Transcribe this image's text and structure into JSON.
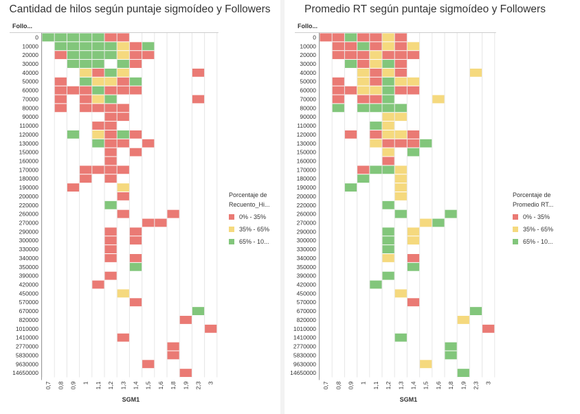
{
  "charts": [
    {
      "title": "Cantidad de hilos según puntaje sigmoídeo y Followers",
      "row_header": "Follo...",
      "legend_title_lines": [
        "Porcentaje de",
        "Recuento_Hi..."
      ]
    },
    {
      "title": "Promedio RT según puntaje sigmoídeo y Followers",
      "row_header": "Follo...",
      "legend_title_lines": [
        "Porcentaje de",
        "Promedio RT..."
      ]
    }
  ],
  "legend_items": [
    {
      "label": "0% - 35%",
      "color": "#ea7a74"
    },
    {
      "label": "35% - 65%",
      "color": "#f5d97e"
    },
    {
      "label": "65% - 10...",
      "color": "#82c67b"
    }
  ],
  "colors": {
    "r": "#ea7a74",
    "y": "#f5d97e",
    "g": "#82c67b",
    "grid": "#e6e6e6",
    "axis": "#999999"
  },
  "chart_data": [
    {
      "type": "heatmap",
      "title": "Cantidad de hilos según puntaje sigmoídeo y Followers",
      "xlabel": "SGM1",
      "ylabel": "Follo...",
      "x": [
        "0,7",
        "0,8",
        "0,9",
        "1",
        "1,1",
        "1,2",
        "1,3",
        "1,4",
        "1,5",
        "1,6",
        "1,8",
        "1,9",
        "2,3",
        "3"
      ],
      "y": [
        "0",
        "10000",
        "20000",
        "30000",
        "40000",
        "50000",
        "60000",
        "70000",
        "80000",
        "90000",
        "110000",
        "120000",
        "130000",
        "150000",
        "160000",
        "170000",
        "180000",
        "190000",
        "200000",
        "220000",
        "260000",
        "270000",
        "290000",
        "300000",
        "330000",
        "340000",
        "350000",
        "390000",
        "420000",
        "450000",
        "570000",
        "670000",
        "820000",
        "1010000",
        "1410000",
        "2770000",
        "5830000",
        "9630000",
        "14650000"
      ],
      "legend": [
        "0% - 35%",
        "35% - 65%",
        "65% - 10..."
      ],
      "rows": [
        "gggggrr.......",
        ".gggggyrg.....",
        ".rggggyrr.....",
        "..ggg.gr......",
        "...yrgy.....r.",
        ".r.gyyrg......",
        ".rrrgrrr......",
        ".r.ryg......r.",
        ".r.rrrr.......",
        ".....rr.......",
        "....rr........",
        "..g.yrgr......",
        "....grr.r.....",
        ".....r.r......",
        ".....r........",
        "...rrrr.......",
        "...r.r........",
        "..r...y.......",
        "......r.......",
        ".....g........",
        "......r...r...",
        "........rr....",
        ".....r.r......",
        ".....r.r......",
        ".....r........",
        ".....r.r......",
        ".......g......",
        ".....r........",
        "....r.........",
        "......y.......",
        ".......r......",
        "............g.",
        "...........r..",
        ".............r",
        "......r.......",
        "..........r...",
        "..........r...",
        "........r.....",
        "...........r.."
      ]
    },
    {
      "type": "heatmap",
      "title": "Promedio RT según puntaje sigmoídeo y Followers",
      "xlabel": "SGM1",
      "ylabel": "Follo...",
      "x": [
        "0,7",
        "0,8",
        "0,9",
        "1",
        "1,1",
        "1,2",
        "1,3",
        "1,4",
        "1,5",
        "1,6",
        "1,8",
        "1,9",
        "2,3",
        "3"
      ],
      "y": [
        "0",
        "10000",
        "20000",
        "30000",
        "40000",
        "50000",
        "60000",
        "70000",
        "80000",
        "90000",
        "110000",
        "120000",
        "130000",
        "150000",
        "160000",
        "170000",
        "180000",
        "190000",
        "200000",
        "220000",
        "260000",
        "270000",
        "290000",
        "300000",
        "330000",
        "340000",
        "350000",
        "390000",
        "420000",
        "450000",
        "570000",
        "670000",
        "820000",
        "1010000",
        "1410000",
        "2770000",
        "5830000",
        "9630000",
        "14650000"
      ],
      "legend": [
        "0% - 35%",
        "35% - 65%",
        "65% - 10..."
      ],
      "rows": [
        "rrgrryr.......",
        ".rrgryry......",
        ".rrryrrr......",
        "..grygr.......",
        "...yryr.....y.",
        ".r.yrgyy......",
        ".rryygrr......",
        ".r.rrg...y....",
        ".g.gggg.......",
        ".....yy.......",
        "....gy........",
        "..r.ryyr......",
        "....yrrrg.....",
        ".....y.g......",
        ".....r........",
        "...rggy.......",
        "...g..y.......",
        "..g...y.......",
        "......y.......",
        ".....g........",
        "......g...g...",
        "........yg....",
        ".....g.y......",
        ".....g.y......",
        ".....g........",
        ".....y.r......",
        ".......g......",
        ".....g........",
        "....g.........",
        "......y.......",
        ".......r......",
        "............g.",
        "...........y..",
        ".............r",
        "......g.......",
        "..........g...",
        "..........g...",
        "........y.....",
        "...........g.."
      ]
    }
  ]
}
